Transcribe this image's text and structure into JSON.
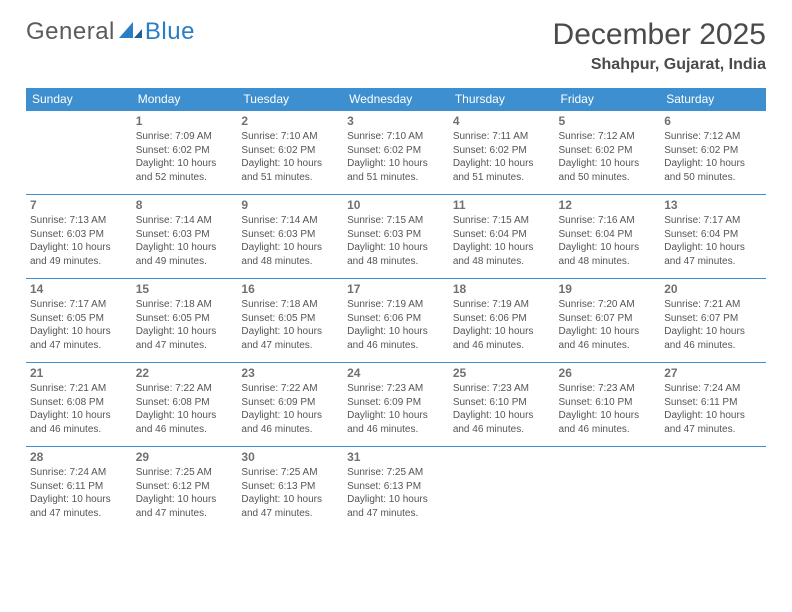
{
  "logo": {
    "text1": "General",
    "text2": "Blue"
  },
  "title": "December 2025",
  "location": "Shahpur, Gujarat, India",
  "colors": {
    "header_bg": "#3d8fcf",
    "header_text": "#ffffff",
    "border": "#3d8fcf",
    "body_text": "#555555",
    "daynum": "#707070",
    "title_text": "#4a4a4a",
    "logo_gray": "#5b5b5b",
    "logo_blue": "#2a7ec5",
    "page_bg": "#ffffff"
  },
  "fonts": {
    "title_size": 30,
    "location_size": 16,
    "th_size": 12,
    "cell_size": 10,
    "daynum_size": 12
  },
  "daysOfWeek": [
    "Sunday",
    "Monday",
    "Tuesday",
    "Wednesday",
    "Thursday",
    "Friday",
    "Saturday"
  ],
  "weeks": [
    [
      null,
      {
        "n": "1",
        "sr": "Sunrise: 7:09 AM",
        "ss": "Sunset: 6:02 PM",
        "d1": "Daylight: 10 hours",
        "d2": "and 52 minutes."
      },
      {
        "n": "2",
        "sr": "Sunrise: 7:10 AM",
        "ss": "Sunset: 6:02 PM",
        "d1": "Daylight: 10 hours",
        "d2": "and 51 minutes."
      },
      {
        "n": "3",
        "sr": "Sunrise: 7:10 AM",
        "ss": "Sunset: 6:02 PM",
        "d1": "Daylight: 10 hours",
        "d2": "and 51 minutes."
      },
      {
        "n": "4",
        "sr": "Sunrise: 7:11 AM",
        "ss": "Sunset: 6:02 PM",
        "d1": "Daylight: 10 hours",
        "d2": "and 51 minutes."
      },
      {
        "n": "5",
        "sr": "Sunrise: 7:12 AM",
        "ss": "Sunset: 6:02 PM",
        "d1": "Daylight: 10 hours",
        "d2": "and 50 minutes."
      },
      {
        "n": "6",
        "sr": "Sunrise: 7:12 AM",
        "ss": "Sunset: 6:02 PM",
        "d1": "Daylight: 10 hours",
        "d2": "and 50 minutes."
      }
    ],
    [
      {
        "n": "7",
        "sr": "Sunrise: 7:13 AM",
        "ss": "Sunset: 6:03 PM",
        "d1": "Daylight: 10 hours",
        "d2": "and 49 minutes."
      },
      {
        "n": "8",
        "sr": "Sunrise: 7:14 AM",
        "ss": "Sunset: 6:03 PM",
        "d1": "Daylight: 10 hours",
        "d2": "and 49 minutes."
      },
      {
        "n": "9",
        "sr": "Sunrise: 7:14 AM",
        "ss": "Sunset: 6:03 PM",
        "d1": "Daylight: 10 hours",
        "d2": "and 48 minutes."
      },
      {
        "n": "10",
        "sr": "Sunrise: 7:15 AM",
        "ss": "Sunset: 6:03 PM",
        "d1": "Daylight: 10 hours",
        "d2": "and 48 minutes."
      },
      {
        "n": "11",
        "sr": "Sunrise: 7:15 AM",
        "ss": "Sunset: 6:04 PM",
        "d1": "Daylight: 10 hours",
        "d2": "and 48 minutes."
      },
      {
        "n": "12",
        "sr": "Sunrise: 7:16 AM",
        "ss": "Sunset: 6:04 PM",
        "d1": "Daylight: 10 hours",
        "d2": "and 48 minutes."
      },
      {
        "n": "13",
        "sr": "Sunrise: 7:17 AM",
        "ss": "Sunset: 6:04 PM",
        "d1": "Daylight: 10 hours",
        "d2": "and 47 minutes."
      }
    ],
    [
      {
        "n": "14",
        "sr": "Sunrise: 7:17 AM",
        "ss": "Sunset: 6:05 PM",
        "d1": "Daylight: 10 hours",
        "d2": "and 47 minutes."
      },
      {
        "n": "15",
        "sr": "Sunrise: 7:18 AM",
        "ss": "Sunset: 6:05 PM",
        "d1": "Daylight: 10 hours",
        "d2": "and 47 minutes."
      },
      {
        "n": "16",
        "sr": "Sunrise: 7:18 AM",
        "ss": "Sunset: 6:05 PM",
        "d1": "Daylight: 10 hours",
        "d2": "and 47 minutes."
      },
      {
        "n": "17",
        "sr": "Sunrise: 7:19 AM",
        "ss": "Sunset: 6:06 PM",
        "d1": "Daylight: 10 hours",
        "d2": "and 46 minutes."
      },
      {
        "n": "18",
        "sr": "Sunrise: 7:19 AM",
        "ss": "Sunset: 6:06 PM",
        "d1": "Daylight: 10 hours",
        "d2": "and 46 minutes."
      },
      {
        "n": "19",
        "sr": "Sunrise: 7:20 AM",
        "ss": "Sunset: 6:07 PM",
        "d1": "Daylight: 10 hours",
        "d2": "and 46 minutes."
      },
      {
        "n": "20",
        "sr": "Sunrise: 7:21 AM",
        "ss": "Sunset: 6:07 PM",
        "d1": "Daylight: 10 hours",
        "d2": "and 46 minutes."
      }
    ],
    [
      {
        "n": "21",
        "sr": "Sunrise: 7:21 AM",
        "ss": "Sunset: 6:08 PM",
        "d1": "Daylight: 10 hours",
        "d2": "and 46 minutes."
      },
      {
        "n": "22",
        "sr": "Sunrise: 7:22 AM",
        "ss": "Sunset: 6:08 PM",
        "d1": "Daylight: 10 hours",
        "d2": "and 46 minutes."
      },
      {
        "n": "23",
        "sr": "Sunrise: 7:22 AM",
        "ss": "Sunset: 6:09 PM",
        "d1": "Daylight: 10 hours",
        "d2": "and 46 minutes."
      },
      {
        "n": "24",
        "sr": "Sunrise: 7:23 AM",
        "ss": "Sunset: 6:09 PM",
        "d1": "Daylight: 10 hours",
        "d2": "and 46 minutes."
      },
      {
        "n": "25",
        "sr": "Sunrise: 7:23 AM",
        "ss": "Sunset: 6:10 PM",
        "d1": "Daylight: 10 hours",
        "d2": "and 46 minutes."
      },
      {
        "n": "26",
        "sr": "Sunrise: 7:23 AM",
        "ss": "Sunset: 6:10 PM",
        "d1": "Daylight: 10 hours",
        "d2": "and 46 minutes."
      },
      {
        "n": "27",
        "sr": "Sunrise: 7:24 AM",
        "ss": "Sunset: 6:11 PM",
        "d1": "Daylight: 10 hours",
        "d2": "and 47 minutes."
      }
    ],
    [
      {
        "n": "28",
        "sr": "Sunrise: 7:24 AM",
        "ss": "Sunset: 6:11 PM",
        "d1": "Daylight: 10 hours",
        "d2": "and 47 minutes."
      },
      {
        "n": "29",
        "sr": "Sunrise: 7:25 AM",
        "ss": "Sunset: 6:12 PM",
        "d1": "Daylight: 10 hours",
        "d2": "and 47 minutes."
      },
      {
        "n": "30",
        "sr": "Sunrise: 7:25 AM",
        "ss": "Sunset: 6:13 PM",
        "d1": "Daylight: 10 hours",
        "d2": "and 47 minutes."
      },
      {
        "n": "31",
        "sr": "Sunrise: 7:25 AM",
        "ss": "Sunset: 6:13 PM",
        "d1": "Daylight: 10 hours",
        "d2": "and 47 minutes."
      },
      null,
      null,
      null
    ]
  ]
}
